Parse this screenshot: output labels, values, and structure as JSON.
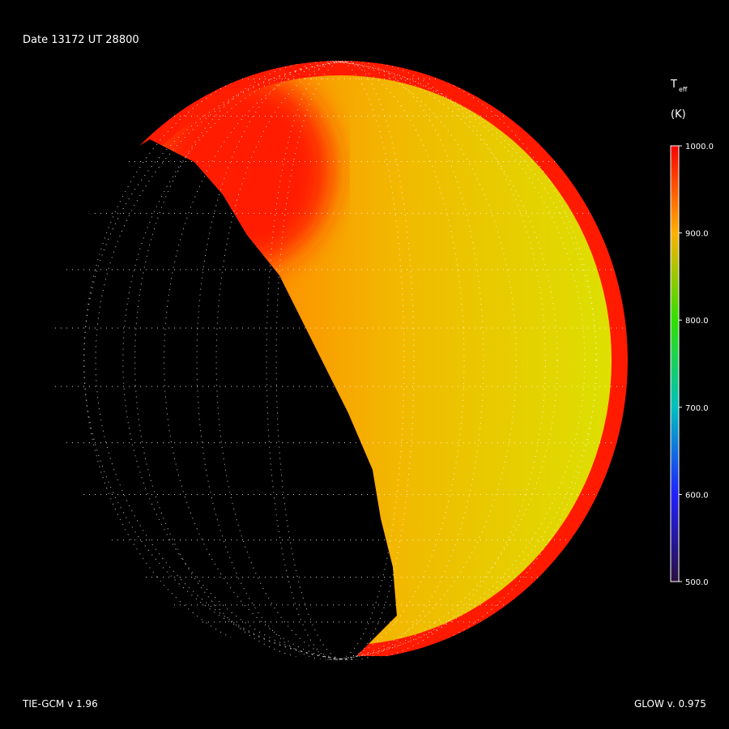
{
  "header": {
    "date": "Date 13172  UT 28800"
  },
  "colorbar": {
    "symbol": "T",
    "subscript": "eff",
    "unit": "(K)",
    "range": [
      500,
      1000
    ],
    "ticks": [
      {
        "value": 1000,
        "label": "1000.0"
      },
      {
        "value": 900,
        "label": "900.0"
      },
      {
        "value": 800,
        "label": "800.0"
      },
      {
        "value": 700,
        "label": "700.0"
      },
      {
        "value": 600,
        "label": "600.0"
      },
      {
        "value": 500,
        "label": "500.0"
      }
    ]
  },
  "footer": {
    "left": "TIE-GCM v 1.96",
    "right": "GLOW v. 0.975"
  }
}
